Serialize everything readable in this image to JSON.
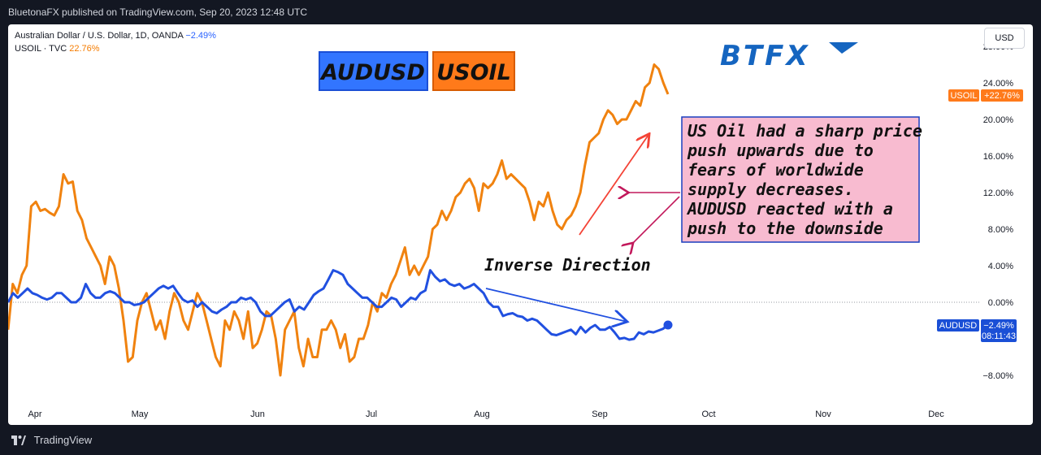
{
  "header": {
    "published": "BluetonaFX published on TradingView.com, Sep 20, 2023 12:48 UTC"
  },
  "legend": {
    "line1_label": "Australian Dollar / U.S. Dollar, 1D, OANDA",
    "line1_value": "−2.49%",
    "line2_label": "USOIL · TVC",
    "line2_value": "22.76%"
  },
  "currency_button": "USD",
  "tags": {
    "audusd": "AUDUSD",
    "usoil": "USOIL"
  },
  "brand": "BTFX",
  "annotation_box": [
    "US Oil had a sharp price",
    "push upwards due to",
    "fears of worldwide",
    "supply decreases.",
    "AUDUSD reacted with a",
    "push to the downside"
  ],
  "annotation_inverse": "Inverse Direction",
  "price_tags": {
    "usoil_name": "USOIL",
    "usoil_value": "+22.76%",
    "audusd_name": "AUDUSD",
    "audusd_value": "−2.49%",
    "audusd_timer": "08:11:43"
  },
  "footer": {
    "brand": "TradingView"
  },
  "colors": {
    "audusd": "#2150e0",
    "usoil": "#f0820f",
    "tag_bg_blue": "#3275ff",
    "tag_bg_orange": "#ff7a1a",
    "note_bg": "#f8bbd0"
  },
  "chart_data": {
    "type": "line",
    "yaxis_ticks": [
      "28.00%",
      "24.00%",
      "20.00%",
      "16.00%",
      "12.00%",
      "8.00%",
      "4.00%",
      "0.00%",
      "−8.00%"
    ],
    "ylim": [
      -10,
      28
    ],
    "x_labels": [
      "Apr",
      "May",
      "Jun",
      "Jul",
      "Aug",
      "Sep",
      "Oct",
      "Nov",
      "Dec"
    ],
    "series": [
      {
        "name": "USOIL",
        "values": [
          -3,
          2,
          1,
          3,
          4,
          10.5,
          11,
          10,
          10.2,
          9.8,
          9.5,
          10.5,
          14,
          13,
          13.2,
          10,
          9,
          7,
          6,
          5,
          4,
          2,
          5,
          4,
          1.5,
          -2,
          -6.5,
          -6,
          -2,
          0,
          1,
          -1,
          -3,
          -2,
          -4,
          -1,
          1,
          0,
          -2,
          -3,
          -1,
          1,
          0,
          -2,
          -4,
          -6,
          -7,
          -2,
          -3,
          -1,
          -2,
          -4,
          -1,
          -5,
          -4.5,
          -3,
          -1,
          -1.5,
          -4,
          -8,
          -3,
          -2,
          -1,
          -5,
          -7,
          -4,
          -6,
          -6,
          -3,
          -3,
          -2,
          -3,
          -5,
          -3.5,
          -6.5,
          -6,
          -4,
          -4,
          -2.5,
          0,
          -1,
          1,
          0.5,
          2,
          3,
          4.5,
          6,
          3,
          4,
          3,
          4,
          5,
          8,
          8.5,
          10,
          9,
          10,
          11.5,
          12,
          13,
          13.5,
          12.5,
          10,
          13,
          12.5,
          13,
          14,
          15.5,
          13.5,
          14,
          13.5,
          13,
          12.5,
          11,
          9,
          11,
          10.5,
          12,
          10,
          8.5,
          8,
          9,
          9.5,
          10.5,
          12,
          15,
          17.5,
          18,
          18.5,
          20,
          21,
          20.5,
          19.5,
          20,
          20,
          21,
          22,
          21.5,
          23.5,
          24,
          26,
          25.5,
          24,
          22.76
        ]
      },
      {
        "name": "AUDUSD",
        "values": [
          0,
          1,
          0.5,
          1,
          1.5,
          1,
          0.8,
          0.5,
          0.3,
          0.5,
          1,
          1,
          0.5,
          0,
          0,
          0.5,
          2,
          1,
          0.5,
          0.5,
          1,
          1.2,
          1,
          0.5,
          0,
          0,
          -0.3,
          -0.2,
          0,
          0.5,
          1,
          1.5,
          1.8,
          1.5,
          1.8,
          1,
          0.3,
          0,
          0.2,
          -0.5,
          0,
          -0.5,
          -1,
          -1.2,
          -0.8,
          -0.5,
          0,
          0,
          0.5,
          0.3,
          0.5,
          0,
          -1,
          -1.5,
          -1.5,
          -1,
          -0.5,
          0,
          0.3,
          -1,
          -0.5,
          -0.8,
          0,
          0.8,
          1.2,
          1.5,
          2.5,
          3.5,
          3.3,
          3,
          2,
          1.5,
          1,
          0.5,
          0.5,
          0,
          -0.5,
          -0.5,
          0,
          0.5,
          0.3,
          -0.5,
          0,
          0.5,
          0.3,
          1,
          1.3,
          3.5,
          2.8,
          2.3,
          2.5,
          2,
          1.8,
          2,
          1.5,
          1.7,
          2,
          1.5,
          1,
          0,
          -0.5,
          -0.5,
          -1.5,
          -1.3,
          -1.2,
          -1.5,
          -1.6,
          -2,
          -1.8,
          -2,
          -2.5,
          -3,
          -3.5,
          -3.6,
          -3.4,
          -3.2,
          -3,
          -3.5,
          -2.7,
          -3.3,
          -2.8,
          -2.5,
          -3,
          -3,
          -2.7,
          -3.3,
          -4,
          -3.9,
          -4.1,
          -4,
          -3.3,
          -3.5,
          -3.2,
          -3.3,
          -3.1,
          -2.9,
          -2.49
        ]
      }
    ]
  }
}
